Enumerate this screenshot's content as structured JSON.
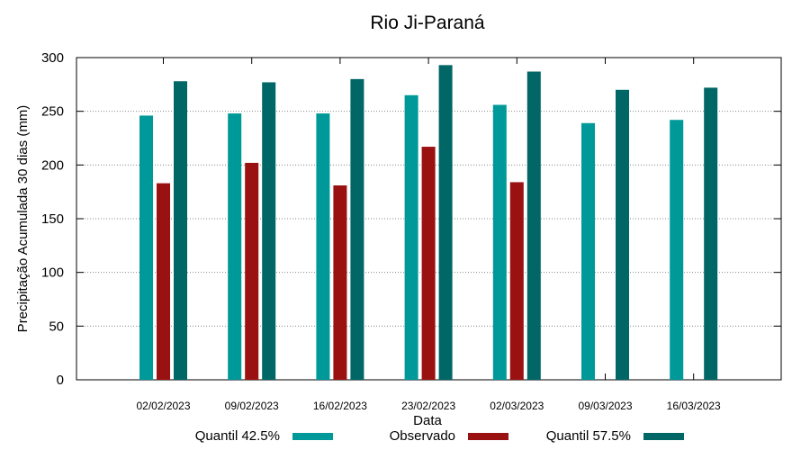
{
  "chart_data": {
    "type": "bar",
    "title": "Rio Ji-Paraná",
    "xlabel": "Data",
    "ylabel": "Precipitação Acumulada 30 dias (mm)",
    "ylim": [
      0,
      300
    ],
    "yticks": [
      0,
      50,
      100,
      150,
      200,
      250,
      300
    ],
    "grid": true,
    "categories": [
      "02/02/2023",
      "09/02/2023",
      "16/02/2023",
      "23/02/2023",
      "02/03/2023",
      "09/03/2023",
      "16/03/2023"
    ],
    "series": [
      {
        "name": "Quantil 42.5%",
        "color": "#009999",
        "values": [
          246,
          248,
          248,
          265,
          256,
          239,
          242
        ]
      },
      {
        "name": "Observado",
        "color": "#991111",
        "values": [
          183,
          202,
          181,
          217,
          184,
          null,
          null
        ]
      },
      {
        "name": "Quantil 57.5%",
        "color": "#006666",
        "values": [
          278,
          277,
          280,
          293,
          287,
          270,
          272
        ]
      }
    ],
    "legend_position": "bottom"
  }
}
